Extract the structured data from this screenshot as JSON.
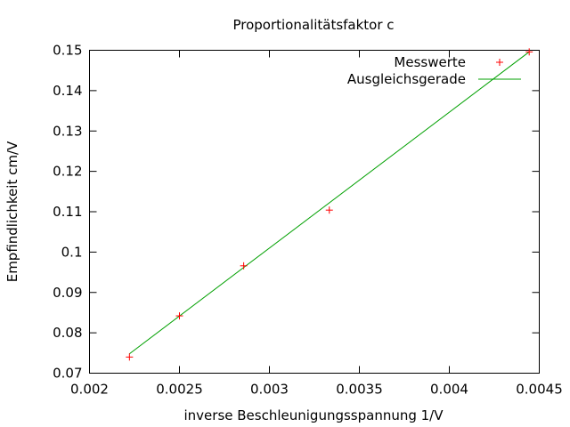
{
  "chart_data": {
    "type": "scatter",
    "title": "Proportionalitätsfaktor c",
    "xlabel": "inverse Beschleunigungsspannung 1/V",
    "ylabel": "Empfindlichkeit cm/V",
    "xlim": [
      0.002,
      0.0045
    ],
    "ylim": [
      0.07,
      0.15
    ],
    "x_ticks": [
      "0.002",
      "0.0025",
      "0.003",
      "0.0035",
      "0.004",
      "0.0045"
    ],
    "y_ticks": [
      "0.07",
      "0.08",
      "0.09",
      "0.1",
      "0.11",
      "0.12",
      "0.13",
      "0.14",
      "0.15"
    ],
    "grid": false,
    "legend_position": "top-right",
    "series": [
      {
        "name": "Messwerte",
        "kind": "points",
        "marker": "+",
        "color": "#ff0000",
        "x": [
          0.002222,
          0.0025,
          0.002857,
          0.003333,
          0.004444
        ],
        "y": [
          0.074,
          0.0842,
          0.0966,
          0.1104,
          0.1496
        ]
      },
      {
        "name": "Ausgleichsgerade",
        "kind": "line",
        "color": "#00a000",
        "x": [
          0.002222,
          0.004444
        ],
        "y": [
          0.0748,
          0.1496
        ]
      }
    ]
  }
}
